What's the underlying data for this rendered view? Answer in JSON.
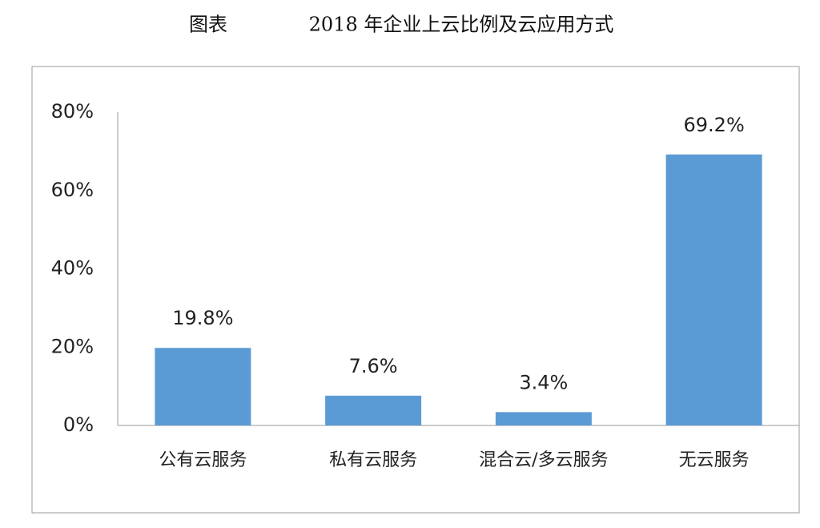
{
  "chart_data": {
    "type": "bar",
    "label": "图表",
    "title": "2018 年企业上云比例及云应用方式",
    "categories": [
      "公有云服务",
      "私有云服务",
      "混合云/多云服务",
      "无云服务"
    ],
    "values": [
      19.8,
      7.6,
      3.4,
      69.2
    ],
    "value_labels": [
      "19.8%",
      "7.6%",
      "3.4%",
      "69.2%"
    ],
    "color": "#5b9bd5",
    "ylim": [
      0,
      80
    ],
    "yticks": [
      {
        "value": 0,
        "label": "0%"
      },
      {
        "value": 20,
        "label": "20%"
      },
      {
        "value": 40,
        "label": "40%"
      },
      {
        "value": 60,
        "label": "60%"
      },
      {
        "value": 80,
        "label": "80%"
      }
    ],
    "grid": false
  }
}
